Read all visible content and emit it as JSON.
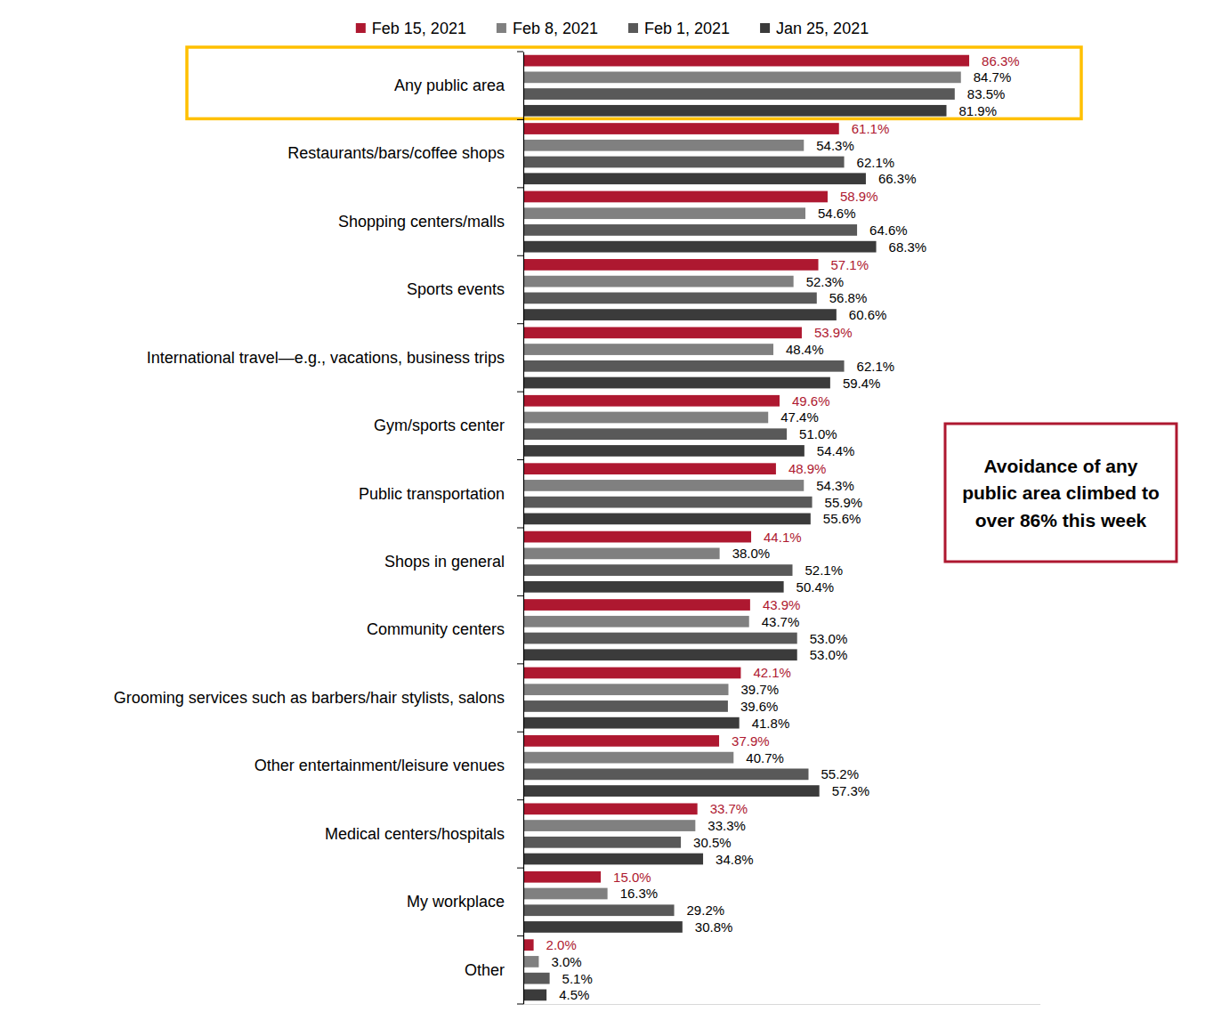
{
  "chart_data": {
    "type": "bar",
    "orientation": "horizontal",
    "data_labels": true,
    "tick_labels": "y",
    "legend": "top",
    "annotation": "Avoidance of any public area climbed to over 86% this week",
    "categories": [
      "Any public area",
      "Restaurants/bars/coffee shops",
      "Shopping centers/malls",
      "Sports events",
      "International travel—e.g., vacations, business trips",
      "Gym/sports center",
      "Public transportation",
      "Shops in general",
      "Community centers",
      "Grooming services such as barbers/hair stylists, salons",
      "Other entertainment/leisure venues",
      "Medical centers/hospitals",
      "My workplace",
      "Other"
    ],
    "xlim": [
      0,
      100
    ],
    "series": [
      {
        "name": "Feb 15, 2021",
        "color": "#ae1830",
        "values": [
          86.3,
          61.1,
          58.9,
          57.1,
          53.9,
          49.6,
          48.9,
          44.1,
          43.9,
          42.1,
          37.9,
          33.7,
          15.0,
          2.0
        ],
        "value_labels": [
          "86.3%",
          "61.1%",
          "58.9%",
          "57.1%",
          "53.9%",
          "49.6%",
          "48.9%",
          "44.1%",
          "43.9%",
          "42.1%",
          "37.9%",
          "33.7%",
          "15.0%",
          "2.0%"
        ]
      },
      {
        "name": "Feb 8, 2021",
        "color": "#808080",
        "values": [
          84.7,
          54.3,
          54.6,
          52.3,
          48.4,
          47.4,
          54.3,
          38.0,
          43.7,
          39.7,
          40.7,
          33.3,
          16.3,
          3.0
        ],
        "value_labels": [
          "84.7%",
          "54.3%",
          "54.6%",
          "52.3%",
          "48.4%",
          "47.4%",
          "54.3%",
          "38.0%",
          "43.7%",
          "39.7%",
          "40.7%",
          "33.3%",
          "16.3%",
          "3.0%"
        ]
      },
      {
        "name": "Feb 1, 2021",
        "color": "#595959",
        "values": [
          83.5,
          62.1,
          64.6,
          56.8,
          62.1,
          51.0,
          55.9,
          52.1,
          53.0,
          39.6,
          55.2,
          30.5,
          29.2,
          5.1
        ],
        "value_labels": [
          "83.5%",
          "62.1%",
          "64.6%",
          "56.8%",
          "62.1%",
          "51.0%",
          "55.9%",
          "52.1%",
          "53.0%",
          "39.6%",
          "55.2%",
          "30.5%",
          "29.2%",
          "5.1%"
        ]
      },
      {
        "name": "Jan 25, 2021",
        "color": "#3b3b3b",
        "values": [
          81.9,
          66.3,
          68.3,
          60.6,
          59.4,
          54.4,
          55.6,
          50.4,
          53.0,
          41.8,
          57.3,
          34.8,
          30.8,
          4.5
        ],
        "value_labels": [
          "81.9%",
          "66.3%",
          "68.3%",
          "60.6%",
          "59.4%",
          "54.4%",
          "55.6%",
          "50.4%",
          "53.0%",
          "41.8%",
          "57.3%",
          "34.8%",
          "30.8%",
          "4.5%"
        ]
      }
    ]
  }
}
